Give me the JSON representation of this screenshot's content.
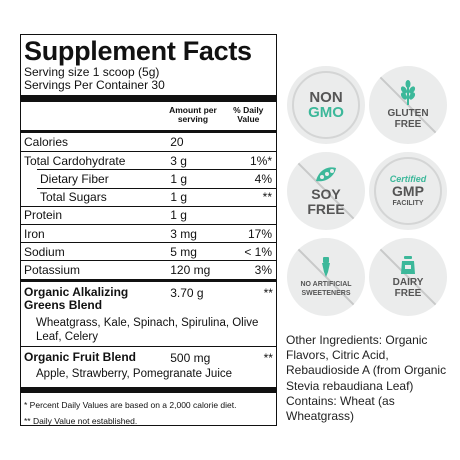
{
  "facts": {
    "title": "Supplement Facts",
    "serving_size": "Serving size 1 scoop (5g)",
    "servings_per_container": "Servings Per Container 30",
    "col_amount": "Amount per serving",
    "col_dv": "% Daily Value",
    "rows": [
      {
        "name": "Calories",
        "amount": "20",
        "dv": ""
      },
      {
        "name": "Total Cardohydrate",
        "amount": "3 g",
        "dv": "1%*"
      },
      {
        "name": "Dietary Fiber",
        "amount": "1 g",
        "dv": "4%"
      },
      {
        "name": "Total Sugars",
        "amount": "1 g",
        "dv": "**"
      },
      {
        "name": "Protein",
        "amount": "1 g",
        "dv": ""
      },
      {
        "name": "Iron",
        "amount": "3 mg",
        "dv": "17%"
      },
      {
        "name": "Sodium",
        "amount": "5 mg",
        "dv": "< 1%"
      },
      {
        "name": "Potassium",
        "amount": "120 mg",
        "dv": "3%"
      }
    ],
    "blends": [
      {
        "name": "Organic Alkalizing Greens Blend",
        "amount": "3.70 g",
        "dv": "**",
        "contents": "Wheatgrass, Kale, Spinach, Spirulina, Olive Leaf, Celery"
      },
      {
        "name": "Organic Fruit Blend",
        "amount": "500 mg",
        "dv": "**",
        "contents": "Apple, Strawberry, Pomegranate Juice"
      }
    ],
    "footnote1": "* Percent Daily Values are based on a 2,000 calorie diet.",
    "footnote2": "** Daily Value not established."
  },
  "badges": [
    {
      "line1": "NON",
      "line2": "GMO",
      "icon": "none"
    },
    {
      "line1": "GLUTEN",
      "line2": "FREE",
      "icon": "wheat-icon"
    },
    {
      "line1": "SOY",
      "line2": "FREE",
      "icon": "soybean-icon"
    },
    {
      "line0": "Certified",
      "line1": "GMP",
      "line2": "FACILITY",
      "icon": "none"
    },
    {
      "line1": "NO ARTIFICIAL",
      "line2": "SWEETENERS",
      "icon": "dropper-icon"
    },
    {
      "line1": "DAIRY",
      "line2": "FREE",
      "icon": "milk-jug-icon"
    }
  ],
  "other_ingredients": "Other Ingredients: Organic Flavors, Citric Acid, Rebaudioside A (from Organic Stevia rebaudiana Leaf) Contains: Wheat (as Wheatgrass)",
  "colors": {
    "accent": "#3cb89a",
    "badge_bg": "#ebecec",
    "text": "#111111"
  }
}
